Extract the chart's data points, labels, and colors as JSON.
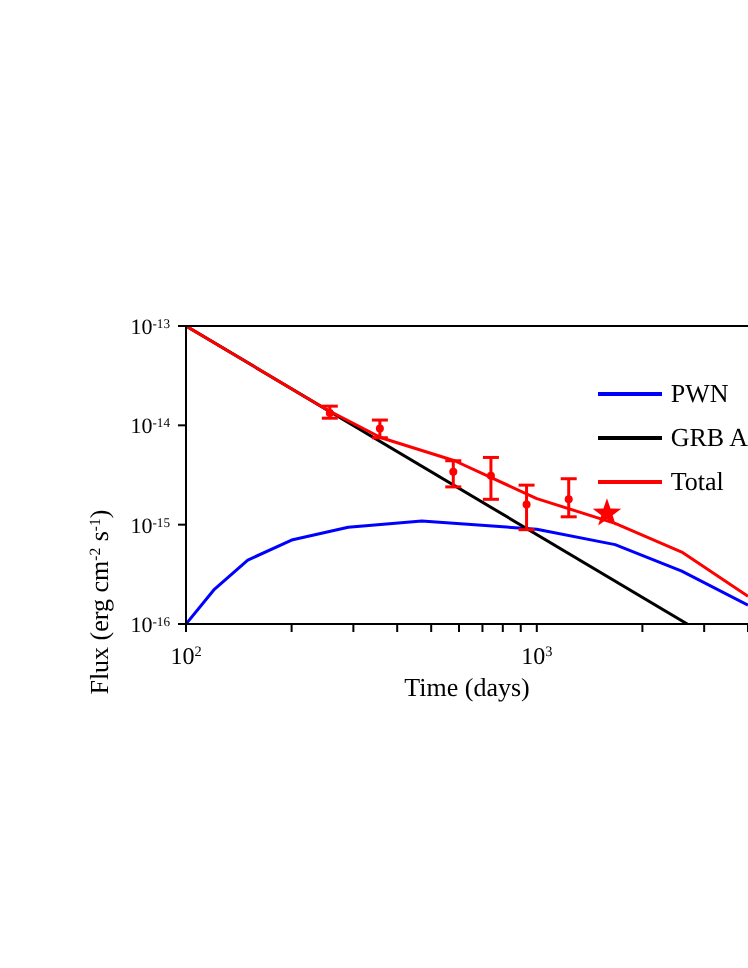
{
  "chart_data": {
    "type": "line",
    "xlabel": "Time (days)",
    "ylabel": "Flux (erg cm$^{-2}$ s$^{-1}$)",
    "log": "xy",
    "grid": false,
    "legend": "top right",
    "xlim": [
      100,
      4000
    ],
    "ylim": [
      1e-16,
      1e-13
    ],
    "xticks": [
      {
        "value": 100,
        "label": "10$^{2}$"
      },
      {
        "value": 200,
        "label": null
      },
      {
        "value": 300,
        "label": null
      },
      {
        "value": 400,
        "label": null
      },
      {
        "value": 500,
        "label": null
      },
      {
        "value": 600,
        "label": null
      },
      {
        "value": 700,
        "label": null
      },
      {
        "value": 800,
        "label": null
      },
      {
        "value": 900,
        "label": null
      },
      {
        "value": 1000,
        "label": "10$^{3}$"
      },
      {
        "value": 2000,
        "label": null
      },
      {
        "value": 3000,
        "label": null
      },
      {
        "value": 4000,
        "label": null
      }
    ],
    "yticks": [
      {
        "value": 1e-16,
        "label": "10$^{-16}$"
      },
      {
        "value": 1e-15,
        "label": "10$^{-15}$"
      },
      {
        "value": 1e-14,
        "label": "10$^{-14}$"
      },
      {
        "value": 1e-13,
        "label": "10$^{-13}$"
      }
    ],
    "series": [
      {
        "name": "PWN",
        "color": "#0000ff",
        "marker": "none",
        "x": [
          100,
          120,
          150,
          200,
          290,
          470,
          1000,
          1672,
          2590,
          4000
        ],
        "values": [
          1e-16,
          2.2e-16,
          4.4e-16,
          7e-16,
          9.4e-16,
          1.09e-15,
          9e-16,
          6.3e-16,
          3.4e-16,
          1.55e-16
        ]
      },
      {
        "name": "GRB A",
        "color": "#000000",
        "marker": "none",
        "x": [
          100,
          2685
        ],
        "values": [
          1e-13,
          1e-16
        ]
      },
      {
        "name": "Total",
        "color": "#ff0000",
        "marker": "none",
        "x": [
          100,
          250,
          360,
          583,
          1000,
          1672,
          2590,
          4000
        ],
        "values": [
          1e-13,
          1.46e-14,
          7.5e-15,
          4.4e-15,
          1.83e-15,
          1.03e-15,
          5.3e-16,
          1.9e-16
        ]
      },
      {
        "type": "scatter",
        "color": "#ff0000",
        "marker": "circle",
        "x": [
          257,
          357,
          578,
          740,
          935,
          1233
        ],
        "values": [
          1.33e-14,
          9.3e-15,
          3.4e-15,
          3.1e-15,
          1.6e-15,
          1.8e-15
        ],
        "errors": [
          [
            1.18e-14,
            1.56e-14
          ],
          [
            7.5e-15,
            1.13e-14
          ],
          [
            2.4e-15,
            4.4e-15
          ],
          [
            1.8e-15,
            4.75e-15
          ],
          [
            8.9e-16,
            2.5e-15
          ],
          [
            1.2e-15,
            2.9e-15
          ]
        ]
      },
      {
        "type": "scatter",
        "color": "#ff0000",
        "marker": "star",
        "x": [
          1585
        ],
        "values": [
          1.3e-15
        ]
      }
    ]
  }
}
